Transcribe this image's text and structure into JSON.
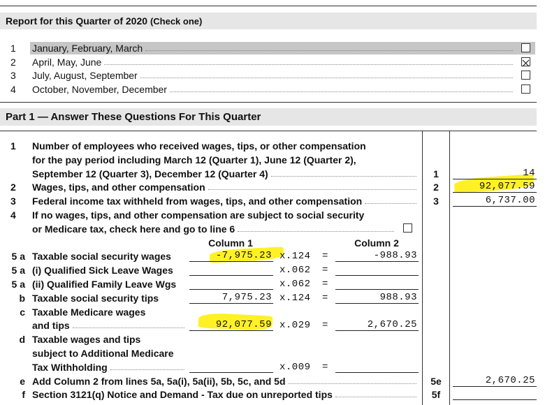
{
  "quarter_section": {
    "title": "Report for this Quarter",
    "year": "of 2020",
    "note": "(Check one)",
    "options": [
      {
        "number": "1",
        "label": "January, February, March",
        "checked": false
      },
      {
        "number": "2",
        "label": "April, May, June",
        "checked": true
      },
      {
        "number": "3",
        "label": "July, August, September",
        "checked": false
      },
      {
        "number": "4",
        "label": "October, November, December",
        "checked": false
      }
    ]
  },
  "part1": {
    "title": "Part 1 — Answer These Questions For This Quarter",
    "questions": [
      {
        "number": "1",
        "text": [
          "Number of employees who received wages, tips, or other compensation",
          "for the pay period including March 12 (Quarter 1), June 12 (Quarter 2),",
          "September 12 (Quarter 3), December 12 (Quarter 4)"
        ],
        "box_number": "1",
        "amount": "14"
      },
      {
        "number": "2",
        "text": [
          "Wages, tips, and other compensation"
        ],
        "box_number": "2",
        "amount": "92,077.59"
      },
      {
        "number": "3",
        "text": [
          "Federal income tax withheld from wages, tips, and other compensation"
        ],
        "box_number": "3",
        "amount": "6,737.00"
      },
      {
        "number": "4",
        "text": [
          "If no wages, tips, and other compensation are subject to social security",
          "or Medicare tax, check here and go to line 6"
        ],
        "checked": false
      }
    ],
    "column_headers": [
      "Column 1",
      "Column 2"
    ],
    "tax_lines": [
      {
        "number": "5 a",
        "text": [
          "Taxable social security wages"
        ],
        "column_1": "-7,975.23",
        "rate": "x.124",
        "equals": "=",
        "column_2": "-988.93"
      },
      {
        "number": "5 a",
        "text": [
          "(i) Qualified Sick Leave Wages"
        ],
        "rate": "x.062",
        "equals": "="
      },
      {
        "number": "5 a",
        "text": [
          "(ii) Qualified Family Leave Wgs"
        ],
        "rate": "x.062",
        "equals": "="
      },
      {
        "number": "b",
        "text": [
          "Taxable social security tips"
        ],
        "column_1": "7,975.23",
        "rate": "x.124",
        "equals": "=",
        "column_2": "988.93"
      },
      {
        "number": "c",
        "text": [
          "Taxable Medicare wages",
          "and tips"
        ],
        "column_1": "92,077.59",
        "rate": "x.029",
        "equals": "=",
        "column_2": "2,670.25"
      },
      {
        "number": "d",
        "text": [
          "Taxable wages and tips",
          "subject to Additional Medicare",
          "Tax Withholding"
        ],
        "rate": "x.009",
        "equals": "="
      }
    ],
    "totals": [
      {
        "number": "e",
        "text": [
          "Add Column 2 from lines 5a, 5a(i), 5a(ii), 5b, 5c, and 5d"
        ],
        "box_number": "5e",
        "amount": "2,670.25"
      },
      {
        "number": "f",
        "text": [
          "Section 3121(q) Notice and Demand - Tax due on unreported tips"
        ],
        "box_number": "5f"
      }
    ]
  }
}
